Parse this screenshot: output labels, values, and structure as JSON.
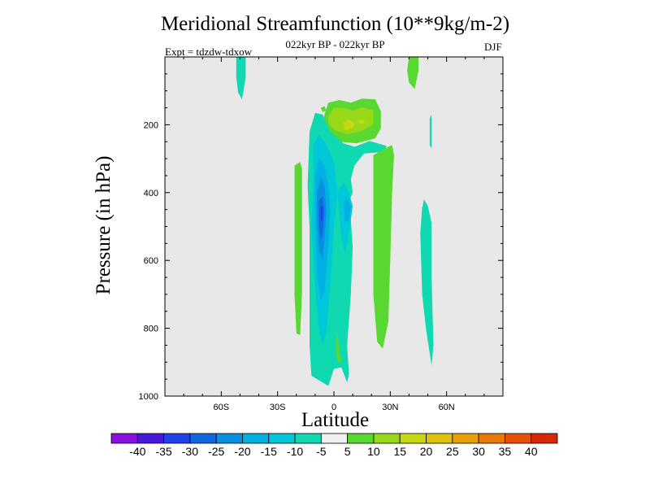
{
  "chart_data": {
    "type": "contour",
    "title": "Meridional Streamfunction (10**9kg/m-2)",
    "subtitle": "022kyr BP - 022kyr BP",
    "experiment": "Expt = tdzdw-tdxow",
    "season": "DJF",
    "xlabel": "Latitude",
    "ylabel": "Pressure (in hPa)",
    "xlim": [
      -90,
      90
    ],
    "ylim": [
      1000,
      0
    ],
    "x_ticks": [
      {
        "value": -60,
        "label": "60S"
      },
      {
        "value": -30,
        "label": "30S"
      },
      {
        "value": 0,
        "label": "0"
      },
      {
        "value": 30,
        "label": "30N"
      },
      {
        "value": 60,
        "label": "60N"
      }
    ],
    "y_ticks": [
      {
        "value": 200,
        "label": "200"
      },
      {
        "value": 400,
        "label": "400"
      },
      {
        "value": 600,
        "label": "600"
      },
      {
        "value": 800,
        "label": "800"
      },
      {
        "value": 1000,
        "label": "1000"
      }
    ],
    "background_color": "#e8e8e8",
    "colorbar": {
      "labels": [
        "-40",
        "-35",
        "-30",
        "-25",
        "-20",
        "-15",
        "-10",
        "-5",
        "5",
        "10",
        "15",
        "20",
        "25",
        "30",
        "35",
        "40"
      ],
      "colors": [
        "#8a10e0",
        "#4818d8",
        "#2040e8",
        "#1068e0",
        "#0890e0",
        "#00b0e0",
        "#00c8d8",
        "#10d8b0",
        "#f0f0f0",
        "#58d830",
        "#98d818",
        "#c8d810",
        "#e0c008",
        "#e8a008",
        "#e87808",
        "#e85008",
        "#d82808"
      ]
    },
    "contour_regions": [
      {
        "name": "stratosphere-south-cell",
        "level": -10,
        "color": "#10d8b0",
        "points": [
          [
            -52,
            0
          ],
          [
            -47,
            0
          ],
          [
            -47,
            60
          ],
          [
            -49,
            125
          ],
          [
            -51,
            105
          ],
          [
            -52,
            60
          ]
        ]
      },
      {
        "name": "stratosphere-north-cell",
        "level": 5,
        "color": "#58d830",
        "points": [
          [
            40,
            0
          ],
          [
            45,
            0
          ],
          [
            45,
            40
          ],
          [
            43,
            95
          ],
          [
            40,
            75
          ],
          [
            39,
            40
          ]
        ]
      },
      {
        "name": "upper-positive-outer",
        "level": 5,
        "color": "#58d830",
        "points": [
          [
            -5,
            170
          ],
          [
            -3,
            135
          ],
          [
            3,
            127
          ],
          [
            9,
            135
          ],
          [
            15,
            123
          ],
          [
            22,
            125
          ],
          [
            25,
            160
          ],
          [
            25,
            210
          ],
          [
            22,
            240
          ],
          [
            12,
            255
          ],
          [
            3,
            250
          ],
          [
            -4,
            225
          ],
          [
            -6,
            195
          ]
        ]
      },
      {
        "name": "upper-positive-core",
        "level": 10,
        "color": "#98d818",
        "points": [
          [
            -3,
            175
          ],
          [
            0,
            150
          ],
          [
            5,
            150
          ],
          [
            10,
            158
          ],
          [
            15,
            148
          ],
          [
            21,
            158
          ],
          [
            21,
            200
          ],
          [
            14,
            220
          ],
          [
            7,
            228
          ],
          [
            0,
            215
          ],
          [
            -3,
            195
          ]
        ]
      },
      {
        "name": "upper-positive-peak",
        "level": 15,
        "color": "#c8d810",
        "points": [
          [
            5,
            195
          ],
          [
            8,
            185
          ],
          [
            11,
            195
          ],
          [
            10,
            210
          ],
          [
            6,
            215
          ]
        ]
      },
      {
        "name": "upper-positive-spot",
        "level": 15,
        "color": "#c8d810",
        "points": [
          [
            12,
            190
          ],
          [
            15,
            185
          ],
          [
            17,
            193
          ],
          [
            14,
            197
          ]
        ]
      },
      {
        "name": "small-positive-pocket",
        "level": 5,
        "color": "#58d830",
        "points": [
          [
            -7,
            150
          ],
          [
            -5,
            145
          ],
          [
            -4,
            158
          ],
          [
            -6,
            162
          ]
        ]
      },
      {
        "name": "central-negative-outer",
        "level": -10,
        "color": "#10d8b0",
        "points": [
          [
            -13,
            220
          ],
          [
            -10,
            165
          ],
          [
            -6,
            170
          ],
          [
            -2,
            220
          ],
          [
            5,
            255
          ],
          [
            11,
            265
          ],
          [
            19,
            248
          ],
          [
            28,
            262
          ],
          [
            27,
            280
          ],
          [
            16,
            285
          ],
          [
            11,
            320
          ],
          [
            9,
            360
          ],
          [
            10,
            400
          ],
          [
            7,
            440
          ],
          [
            9,
            480
          ],
          [
            10,
            560
          ],
          [
            9,
            700
          ],
          [
            7,
            850
          ],
          [
            8,
            935
          ],
          [
            7,
            960
          ],
          [
            4,
            915
          ],
          [
            0,
            920
          ],
          [
            -3,
            970
          ],
          [
            -6,
            960
          ],
          [
            -12,
            940
          ],
          [
            -13,
            850
          ],
          [
            -13,
            700
          ],
          [
            -13,
            500
          ],
          [
            -14,
            380
          ]
        ]
      },
      {
        "name": "central-negative-15",
        "level": -15,
        "color": "#00c8d8",
        "points": [
          [
            -11,
            260
          ],
          [
            -8,
            230
          ],
          [
            -4,
            258
          ],
          [
            0,
            310
          ],
          [
            2,
            400
          ],
          [
            0,
            500
          ],
          [
            -2,
            680
          ],
          [
            -4,
            810
          ],
          [
            -6,
            850
          ],
          [
            -8,
            800
          ],
          [
            -10,
            680
          ],
          [
            -12,
            500
          ],
          [
            -11,
            380
          ]
        ]
      },
      {
        "name": "central-negative-20",
        "level": -20,
        "color": "#00b0e0",
        "points": [
          [
            -10,
            350
          ],
          [
            -8,
            300
          ],
          [
            -5,
            320
          ],
          [
            -3,
            380
          ],
          [
            -2,
            450
          ],
          [
            -3,
            560
          ],
          [
            -5,
            690
          ],
          [
            -7,
            720
          ],
          [
            -9,
            640
          ],
          [
            -10,
            500
          ]
        ]
      },
      {
        "name": "central-negative-25",
        "level": -25,
        "color": "#0890e0",
        "points": [
          [
            -9,
            400
          ],
          [
            -7,
            355
          ],
          [
            -5,
            380
          ],
          [
            -4,
            450
          ],
          [
            -5,
            540
          ],
          [
            -6,
            600
          ],
          [
            -8,
            570
          ],
          [
            -9,
            480
          ]
        ]
      },
      {
        "name": "central-negative-30",
        "level": -30,
        "color": "#1068e0",
        "points": [
          [
            -8,
            425
          ],
          [
            -6,
            410
          ],
          [
            -5,
            450
          ],
          [
            -6,
            525
          ],
          [
            -7,
            540
          ],
          [
            -8,
            500
          ]
        ]
      },
      {
        "name": "central-negative-35",
        "level": -35,
        "color": "#2040e8",
        "points": [
          [
            -7,
            445
          ],
          [
            -6,
            440
          ],
          [
            -6,
            480
          ],
          [
            -7,
            485
          ]
        ]
      },
      {
        "name": "right-lobe-15",
        "level": -15,
        "color": "#00c8d8",
        "points": [
          [
            2,
            400
          ],
          [
            5,
            370
          ],
          [
            8,
            400
          ],
          [
            10,
            440
          ],
          [
            8,
            520
          ],
          [
            6,
            580
          ],
          [
            4,
            530
          ],
          [
            3,
            470
          ]
        ]
      },
      {
        "name": "right-lobe-20",
        "level": -20,
        "color": "#00b0e0",
        "points": [
          [
            5,
            430
          ],
          [
            7,
            415
          ],
          [
            9,
            440
          ],
          [
            8,
            480
          ],
          [
            6,
            485
          ]
        ]
      },
      {
        "name": "lower-positive-patch",
        "level": 5,
        "color": "#58d830",
        "points": [
          [
            1,
            830
          ],
          [
            2,
            820
          ],
          [
            3,
            870
          ],
          [
            4,
            900
          ],
          [
            2,
            900
          ],
          [
            1,
            870
          ]
        ]
      },
      {
        "name": "left-positive-band",
        "level": 5,
        "color": "#58d830",
        "points": [
          [
            -21,
            320
          ],
          [
            -18,
            310
          ],
          [
            -17,
            330
          ],
          [
            -17,
            500
          ],
          [
            -17,
            700
          ],
          [
            -18,
            820
          ],
          [
            -20,
            815
          ],
          [
            -21,
            700
          ],
          [
            -21,
            500
          ]
        ]
      },
      {
        "name": "right-positive-band",
        "level": 5,
        "color": "#58d830",
        "points": [
          [
            21,
            290
          ],
          [
            27,
            270
          ],
          [
            31,
            260
          ],
          [
            32,
            290
          ],
          [
            31,
            400
          ],
          [
            30,
            600
          ],
          [
            29,
            780
          ],
          [
            26,
            860
          ],
          [
            23,
            840
          ],
          [
            21,
            700
          ],
          [
            21,
            500
          ],
          [
            21,
            350
          ]
        ]
      },
      {
        "name": "far-right-negative-upper",
        "level": -10,
        "color": "#10d8b0",
        "points": [
          [
            51,
            180
          ],
          [
            52,
            170
          ],
          [
            52,
            270
          ],
          [
            51,
            260
          ]
        ]
      },
      {
        "name": "far-right-negative-lower",
        "level": -10,
        "color": "#10d8b0",
        "points": [
          [
            46,
            520
          ],
          [
            47,
            445
          ],
          [
            48,
            420
          ],
          [
            50,
            440
          ],
          [
            52,
            490
          ],
          [
            52,
            650
          ],
          [
            53,
            850
          ],
          [
            52,
            910
          ],
          [
            49,
            800
          ],
          [
            47,
            700
          ]
        ]
      }
    ]
  }
}
